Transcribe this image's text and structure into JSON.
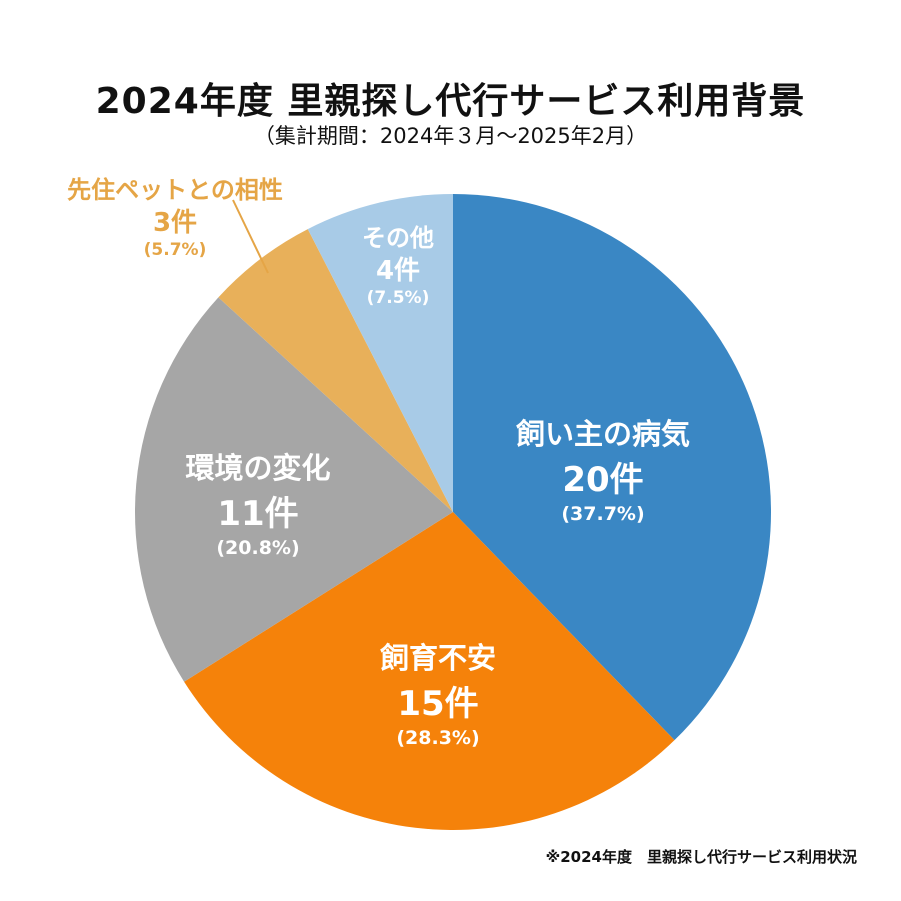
{
  "chart_data": {
    "type": "pie",
    "title": "2024年度 里親探し代行サービス利用背景",
    "subtitle": "（集計期間：2024年３月～2025年2月）",
    "start": "top",
    "direction": "clockwise",
    "slices": [
      {
        "label": "飼い主の病気",
        "value": 20,
        "count_label": "20件",
        "percent_label": "(37.7%)",
        "color": "#3a87c4"
      },
      {
        "label": "飼育不安",
        "value": 15,
        "count_label": "15件",
        "percent_label": "(28.3%)",
        "color": "#f5820a"
      },
      {
        "label": "環境の変化",
        "value": 11,
        "count_label": "11件",
        "percent_label": "(20.8%)",
        "color": "#a6a6a6"
      },
      {
        "label": "先住ペットとの相性",
        "value": 3,
        "count_label": "3件",
        "percent_label": "(5.7%)",
        "color": "#e8b05a"
      },
      {
        "label": "その他",
        "value": 4,
        "count_label": "4件",
        "percent_label": "(7.5%)",
        "color": "#a8cbe7"
      }
    ],
    "note": "※2024年度　里親探し代行サービス利用状況"
  }
}
